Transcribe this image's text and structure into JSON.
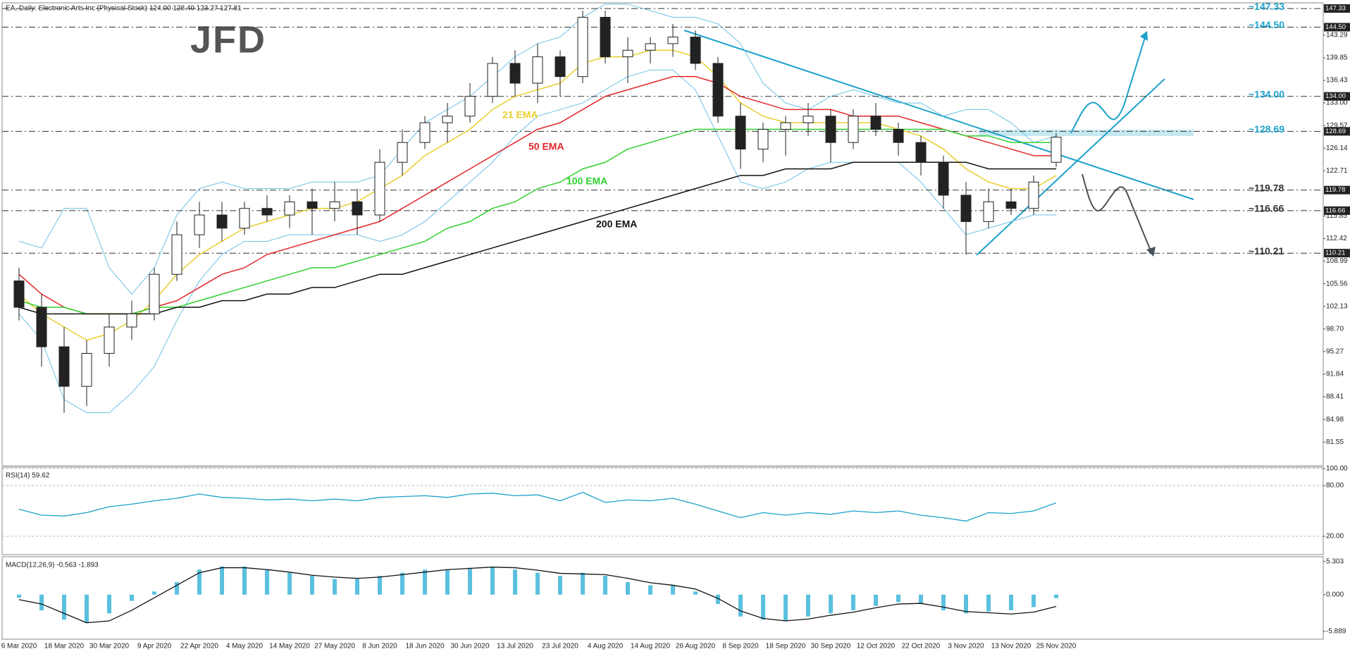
{
  "chart_data": [
    {
      "type": "candlestick",
      "title": "EA, Daily: Electronic Arts Inc (Physical Stock)  124.00 128.40 123.27 127.81",
      "logo": "JFD",
      "categories": [
        "6 Mar 2020",
        null,
        "18 Mar 2020",
        null,
        "30 Mar 2020",
        null,
        "9 Apr 2020",
        null,
        "22 Apr 2020",
        null,
        "4 May 2020",
        null,
        "14 May 2020",
        null,
        "27 May 2020",
        null,
        "8 Jun 2020",
        null,
        "18 Jun 2020",
        null,
        "30 Jun 2020",
        null,
        "13 Jul 2020",
        null,
        "23 Jul 2020",
        null,
        "4 Aug 2020",
        null,
        "14 Aug 2020",
        null,
        "26 Aug 2020",
        null,
        "8 Sep 2020",
        null,
        "18 Sep 2020",
        null,
        "30 Sep 2020",
        null,
        "12 Oct 2020",
        null,
        "22 Oct 2020",
        null,
        "3 Nov 2020",
        null,
        "13 Nov 2020",
        null,
        "25 Nov 2020"
      ],
      "open": [
        106,
        102,
        96,
        90,
        95,
        99,
        101,
        107,
        113,
        116,
        114,
        117,
        116,
        118,
        117,
        118,
        116,
        124,
        127,
        130,
        131,
        134,
        139,
        136,
        140,
        137,
        146,
        140,
        141,
        142,
        143,
        139,
        131,
        126,
        129,
        130,
        131,
        127,
        131,
        129,
        127,
        124,
        119,
        115,
        118,
        117,
        124
      ],
      "high": [
        108,
        104,
        99,
        97,
        101,
        103,
        108,
        115,
        118,
        118,
        118,
        119,
        119,
        120,
        121,
        120,
        126,
        129,
        131,
        133,
        136,
        140,
        141,
        142,
        141,
        147,
        147,
        143,
        143,
        145,
        144,
        140,
        133,
        130,
        131,
        133,
        132,
        132,
        133,
        130,
        128,
        125,
        121,
        120,
        120,
        122,
        128.4
      ],
      "low": [
        100,
        93,
        86,
        87,
        93,
        97,
        100,
        106,
        111,
        112,
        113,
        115,
        114,
        113,
        115,
        113,
        115,
        122,
        126,
        127,
        130,
        133,
        134,
        133,
        134,
        136,
        139,
        136,
        139,
        140,
        138,
        130,
        123,
        124,
        125,
        128,
        124,
        126,
        128,
        125,
        122,
        117,
        110,
        114,
        116,
        116,
        123.27
      ],
      "close": [
        102,
        96,
        90,
        95,
        99,
        101,
        107,
        113,
        116,
        114,
        117,
        116,
        118,
        117,
        118,
        116,
        124,
        127,
        130,
        131,
        134,
        139,
        136,
        140,
        137,
        146,
        140,
        141,
        142,
        143,
        139,
        131,
        126,
        129,
        130,
        131,
        127,
        131,
        129,
        127,
        124,
        119,
        115,
        118,
        117,
        121,
        127.81
      ],
      "ylim": [
        78.15,
        147.98
      ],
      "yticks": [
        143.29,
        139.85,
        136.43,
        {
          "value": 133,
          "label": "133.00"
        },
        129.57,
        126.14,
        122.71,
        115.85,
        112.42,
        108.99,
        105.56,
        102.13,
        {
          "value": 98.7,
          "label": "98.70"
        },
        95.27,
        91.84,
        88.41,
        84.98,
        81.55
      ],
      "lines": [
        {
          "name": "21 EMA",
          "color": "#e8cf2e",
          "values": [
            104,
            101,
            99,
            97,
            98,
            100,
            103,
            107,
            110,
            112,
            114,
            115,
            116,
            117,
            117,
            118,
            120,
            122,
            125,
            127,
            129,
            132,
            134,
            135,
            136,
            139,
            140,
            140,
            141,
            141,
            140,
            137,
            133,
            131,
            130,
            130,
            130,
            130,
            130,
            129,
            128,
            126,
            123,
            121,
            120,
            120,
            122
          ]
        },
        {
          "name": "50 EMA",
          "color": "#e3262a",
          "values": [
            107,
            104,
            102,
            101,
            101,
            101,
            102,
            103,
            105,
            107,
            108,
            110,
            111,
            112,
            113,
            114,
            115,
            117,
            119,
            121,
            123,
            125,
            127,
            129,
            130,
            132,
            134,
            135,
            136,
            137,
            137,
            136,
            134,
            133,
            132,
            132,
            132,
            131,
            131,
            131,
            130,
            129,
            128,
            127,
            126,
            125,
            125
          ]
        },
        {
          "name": "100 EMA",
          "color": "#2fd12f",
          "values": [
            103,
            102,
            102,
            101,
            101,
            101,
            102,
            102,
            103,
            104,
            105,
            106,
            107,
            108,
            108,
            109,
            110,
            111,
            112,
            114,
            115,
            117,
            118,
            120,
            121,
            123,
            124,
            126,
            127,
            128,
            129,
            129,
            129,
            129,
            129,
            129,
            129,
            129,
            129,
            129,
            129,
            129,
            128,
            128,
            127,
            127,
            127
          ]
        },
        {
          "name": "200 EMA",
          "color": "#111111",
          "values": [
            102,
            101,
            101,
            101,
            101,
            101,
            101,
            102,
            102,
            103,
            103,
            104,
            104,
            105,
            105,
            106,
            107,
            107,
            108,
            109,
            110,
            111,
            112,
            113,
            114,
            115,
            116,
            117,
            118,
            119,
            120,
            121,
            122,
            122,
            123,
            123,
            123,
            124,
            124,
            124,
            124,
            124,
            124,
            123,
            123,
            123,
            123
          ]
        }
      ],
      "bands": [
        {
          "color": "#6ec1e4",
          "values": [
            112,
            111,
            117,
            117,
            108,
            104,
            108,
            116,
            120,
            121,
            120,
            120,
            120,
            121,
            121,
            121,
            122,
            126,
            130,
            132,
            134,
            137,
            140,
            142,
            143,
            146,
            148,
            148,
            147,
            146,
            146,
            145,
            142,
            136,
            133,
            132,
            134,
            135,
            134,
            133,
            133,
            131,
            132,
            132,
            130,
            127,
            128
          ]
        },
        {
          "color": "#6ec1e4",
          "values": [
            101,
            97,
            88,
            86,
            86,
            89,
            93,
            100,
            106,
            110,
            112,
            112,
            113,
            113,
            113,
            113,
            112,
            113,
            115,
            118,
            121,
            124,
            128,
            131,
            132,
            133,
            135,
            137,
            138,
            138,
            135,
            128,
            121,
            120,
            121,
            123,
            124,
            124,
            124,
            124,
            121,
            117,
            113,
            114,
            115,
            116,
            116
          ]
        }
      ],
      "levels": [
        {
          "value": 147.33,
          "annotation": "~147.33",
          "color": "#1ba1c9"
        },
        {
          "value": 144.5,
          "label": "144.50",
          "annotation": "~144.50",
          "color": "#1ba1c9"
        },
        {
          "value": 134,
          "label": "134.00",
          "annotation": "~134.00",
          "color": "#1ba1c9"
        },
        {
          "value": 128.69,
          "annotation": "~128.69",
          "color": "#1ba1c9"
        },
        {
          "value": 119.78,
          "annotation": "~119.78",
          "color": "#333333"
        },
        {
          "value": 116.66,
          "annotation": "~116.66",
          "color": "#333333"
        },
        {
          "value": 110.21,
          "annotation": "~110.21",
          "color": "#333333"
        }
      ]
    },
    {
      "type": "line",
      "title": "RSI(14) 59.62",
      "color": "#1ba1c9",
      "values": [
        52,
        45,
        44,
        48,
        55,
        58,
        62,
        65,
        70,
        66,
        65,
        63,
        64,
        62,
        64,
        62,
        66,
        67,
        68,
        66,
        70,
        71,
        68,
        69,
        62,
        72,
        60,
        63,
        62,
        65,
        58,
        50,
        42,
        48,
        45,
        48,
        46,
        50,
        48,
        50,
        45,
        42,
        38,
        48,
        47,
        50,
        59.62
      ],
      "ylim": [
        0,
        100
      ],
      "yticks": [
        {
          "value": 100,
          "label": "100.00"
        },
        {
          "value": 80,
          "label": "80.00"
        },
        {
          "value": 20,
          "label": "20.00"
        }
      ]
    },
    {
      "type": "macd",
      "title": "MACD(12,26,9) -0.563 -1.893",
      "color": "#5bc0de",
      "signal_color": "#111111",
      "histogram": [
        -0.5,
        -2.5,
        -4,
        -4.5,
        -3,
        -1,
        0.5,
        2,
        4,
        4.5,
        4.5,
        4,
        3.5,
        3,
        2.5,
        2.5,
        3,
        3.5,
        4,
        4,
        4.3,
        4.4,
        4,
        3.5,
        3,
        3.5,
        3,
        2,
        1.5,
        1.5,
        0.5,
        -1.5,
        -3.5,
        -4,
        -4.2,
        -3.5,
        -3,
        -2.5,
        -1.8,
        -1.2,
        -1.5,
        -2.5,
        -3,
        -2.7,
        -2.5,
        -2,
        -0.563
      ],
      "signal": [
        -0.8,
        -1.5,
        -3,
        -4.5,
        -4.2,
        -2.5,
        -0.5,
        1.5,
        3.5,
        4.3,
        4.3,
        4,
        3.6,
        3.1,
        2.8,
        2.6,
        2.8,
        3.2,
        3.6,
        4,
        4.2,
        4.4,
        4.3,
        3.9,
        3.4,
        3.3,
        3.2,
        2.6,
        1.9,
        1.5,
        0.9,
        -0.6,
        -2.6,
        -3.8,
        -4.2,
        -3.9,
        -3.3,
        -2.8,
        -2.1,
        -1.5,
        -1.4,
        -2,
        -2.7,
        -2.9,
        -3.1,
        -2.8,
        -1.893
      ],
      "ylim": [
        -6.9,
        5.83
      ],
      "yticks": [
        5.303,
        {
          "value": 0,
          "label": "0.000"
        },
        -5.889
      ]
    }
  ]
}
